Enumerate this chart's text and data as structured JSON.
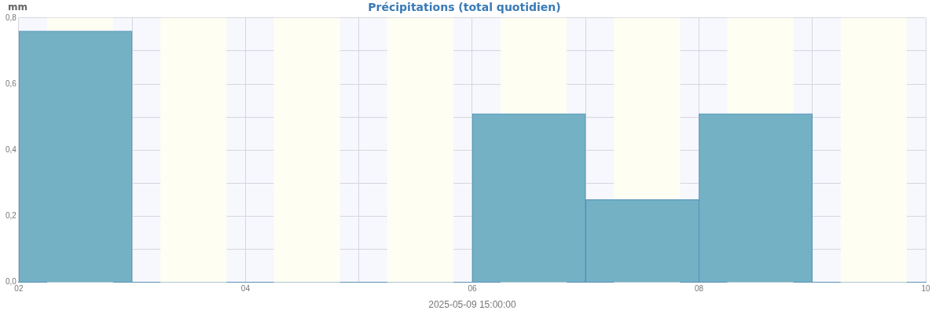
{
  "chart_data": {
    "type": "histogram",
    "title": "Précipitations (total quotidien)",
    "xlabel": "2025-05-09 15:00:00",
    "ylabel": "mm",
    "bins": [
      "2025-05-02",
      "2025-05-03",
      "2025-05-04",
      "2025-05-05",
      "2025-05-06",
      "2025-05-07",
      "2025-05-08",
      "2025-05-09",
      "2025-05-10"
    ],
    "values": [
      0.76,
      null,
      null,
      null,
      0.51,
      0.25,
      0.51,
      null
    ],
    "color": "#74b1c5",
    "xlim": [
      "2025-05-02",
      "2025-05-10"
    ],
    "xticks": [
      {
        "value": "2025-05-02",
        "label": "02"
      },
      {
        "value": "2025-05-03",
        "label": null
      },
      {
        "value": "2025-05-04",
        "label": "04"
      },
      {
        "value": "2025-05-05",
        "label": null
      },
      {
        "value": "2025-05-06",
        "label": "06"
      },
      {
        "value": "2025-05-07",
        "label": null
      },
      {
        "value": "2025-05-08",
        "label": "08"
      },
      {
        "value": "2025-05-09",
        "label": null
      },
      {
        "value": "2025-05-10",
        "label": "10"
      }
    ],
    "ylim": [
      0,
      0.8
    ],
    "yticks": [
      {
        "value": 0,
        "label": "0,0"
      },
      {
        "value": 0.1,
        "label": null
      },
      {
        "value": 0.2,
        "label": "0,2"
      },
      {
        "value": 0.3,
        "label": null
      },
      {
        "value": 0.4,
        "label": "0,4"
      },
      {
        "value": 0.5,
        "label": null
      },
      {
        "value": 0.6,
        "label": "0,6"
      },
      {
        "value": 0.7,
        "label": null
      },
      {
        "value": 0.8,
        "label": "0,8"
      }
    ],
    "grid": true,
    "legend": false,
    "bands": [
      {
        "axis": "x",
        "from": "2025-05-02T06:00",
        "to": "2025-05-02T20:00",
        "color": "#fffef2"
      },
      {
        "axis": "x",
        "from": "2025-05-03T06:00",
        "to": "2025-05-03T20:00",
        "color": "#fffef2"
      },
      {
        "axis": "x",
        "from": "2025-05-04T06:00",
        "to": "2025-05-04T20:00",
        "color": "#fffef2"
      },
      {
        "axis": "x",
        "from": "2025-05-05T06:00",
        "to": "2025-05-05T20:00",
        "color": "#fffef2"
      },
      {
        "axis": "x",
        "from": "2025-05-06T06:00",
        "to": "2025-05-06T20:00",
        "color": "#fffef2"
      },
      {
        "axis": "x",
        "from": "2025-05-07T06:00",
        "to": "2025-05-07T20:00",
        "color": "#fffef2"
      },
      {
        "axis": "x",
        "from": "2025-05-08T06:00",
        "to": "2025-05-08T20:00",
        "color": "#fffef2"
      },
      {
        "axis": "x",
        "from": "2025-05-09T06:00",
        "to": "2025-05-09T20:00",
        "color": "#fffef2"
      }
    ]
  }
}
